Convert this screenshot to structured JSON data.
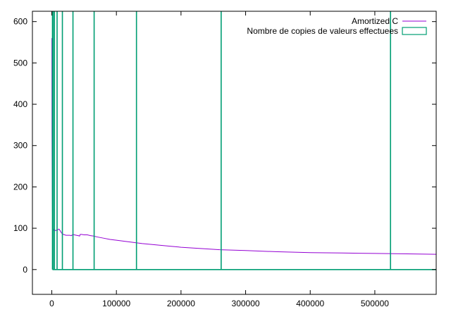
{
  "chart_data": {
    "type": "line",
    "title": "",
    "xlabel": "",
    "ylabel": "",
    "xlim": [
      -30000,
      595000
    ],
    "ylim": [
      -60,
      625
    ],
    "x_ticks": [
      0,
      100000,
      200000,
      300000,
      400000,
      500000
    ],
    "y_ticks": [
      0,
      100,
      200,
      300,
      400,
      500,
      600
    ],
    "grid": false,
    "legend_position": "top-right",
    "series": [
      {
        "name": "Amortized C",
        "style": "line",
        "color": "#9400d3",
        "x": [
          100,
          300,
          600,
          1000,
          1500,
          2000,
          3000,
          4000,
          5000,
          6000,
          7000,
          8000,
          9000,
          10000,
          11000,
          12000,
          13000,
          14000,
          15000,
          16000,
          18000,
          20000,
          22000,
          24000,
          26000,
          28000,
          30000,
          31000,
          32000,
          33000,
          35000,
          38000,
          41000,
          43000,
          44000,
          46000,
          50000,
          55000,
          60000,
          65000,
          70000,
          80000,
          90000,
          100000,
          120000,
          140000,
          160000,
          180000,
          200000,
          230000,
          260000,
          300000,
          350000,
          400000,
          450000,
          500000,
          550000,
          595000
        ],
        "y": [
          560,
          330,
          200,
          140,
          112,
          100,
          95,
          94,
          94,
          95,
          95,
          94,
          96,
          97,
          98,
          96,
          94,
          91,
          89,
          87,
          85,
          84,
          83,
          83,
          83,
          83,
          82,
          83,
          84,
          85,
          84,
          83,
          82,
          81,
          85,
          85,
          84,
          84,
          82,
          81,
          79,
          76,
          73,
          71,
          67,
          63,
          60,
          57,
          54,
          51,
          48,
          46,
          43,
          41,
          40,
          39,
          38,
          37
        ]
      },
      {
        "name": "Nombre de copies de valeurs effectuees",
        "style": "impulses",
        "color": "#009e73",
        "x": [
          1024,
          2048,
          4096,
          8192,
          16384,
          32768,
          65536,
          131072,
          262144,
          524288
        ],
        "y": [
          1024,
          2048,
          4096,
          8192,
          16384,
          32768,
          65536,
          131072,
          262144,
          524288
        ]
      }
    ]
  }
}
